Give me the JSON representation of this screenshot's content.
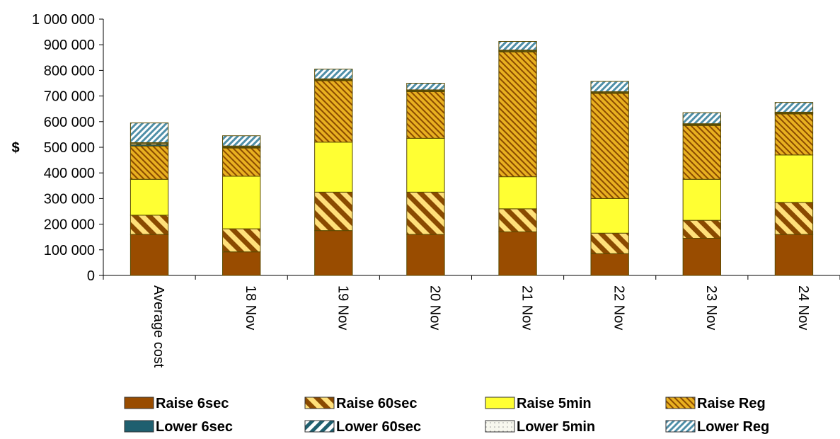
{
  "chart_data": {
    "type": "bar",
    "stacked": true,
    "title": "",
    "xlabel": "",
    "ylabel": "$",
    "ylim": [
      0,
      1000000
    ],
    "yticks": [
      "0",
      "100 000",
      "200 000",
      "300 000",
      "400 000",
      "500 000",
      "600 000",
      "700 000",
      "800 000",
      "900 000",
      "1 000 000"
    ],
    "categories": [
      "Average cost",
      "18 Nov",
      "19 Nov",
      "20 Nov",
      "21 Nov",
      "22 Nov",
      "23 Nov",
      "24 Nov"
    ],
    "series": [
      {
        "name": "Raise 6sec",
        "color": "#994c00",
        "pattern": "solid",
        "values": [
          160000,
          92000,
          175000,
          160000,
          170000,
          85000,
          145000,
          160000
        ]
      },
      {
        "name": "Raise 60sec",
        "color": "#e0a000",
        "pattern": "wide-diagonal",
        "values": [
          75000,
          90000,
          150000,
          165000,
          90000,
          80000,
          70000,
          125000
        ]
      },
      {
        "name": "Raise 5min",
        "color": "#ffff33",
        "pattern": "solid",
        "values": [
          140000,
          205000,
          195000,
          210000,
          125000,
          135000,
          160000,
          185000
        ]
      },
      {
        "name": "Raise Reg",
        "color": "#e0a000",
        "pattern": "narrow-diagonal",
        "values": [
          130000,
          110000,
          240000,
          182000,
          487000,
          410000,
          210000,
          160000
        ]
      },
      {
        "name": "Lower 6sec",
        "color": "#1f5f6f",
        "pattern": "solid",
        "values": [
          5000,
          2000,
          2000,
          2000,
          2000,
          2000,
          2000,
          2000
        ]
      },
      {
        "name": "Lower 60sec",
        "color": "#1f5f6f",
        "pattern": "wide-diagonal-reverse",
        "values": [
          5000,
          3000,
          3000,
          3000,
          3000,
          3000,
          3000,
          3000
        ]
      },
      {
        "name": "Lower 5min",
        "color": "#f4f4e8",
        "pattern": "dots",
        "values": [
          3000,
          3000,
          2000,
          2000,
          2000,
          2000,
          2000,
          2000
        ]
      },
      {
        "name": "Lower Reg",
        "color": "#4f8fa8",
        "pattern": "narrow-diagonal-reverse",
        "values": [
          77000,
          40000,
          38000,
          26000,
          34000,
          40000,
          43000,
          38000
        ]
      }
    ],
    "grid": false,
    "legend_position": "bottom"
  }
}
